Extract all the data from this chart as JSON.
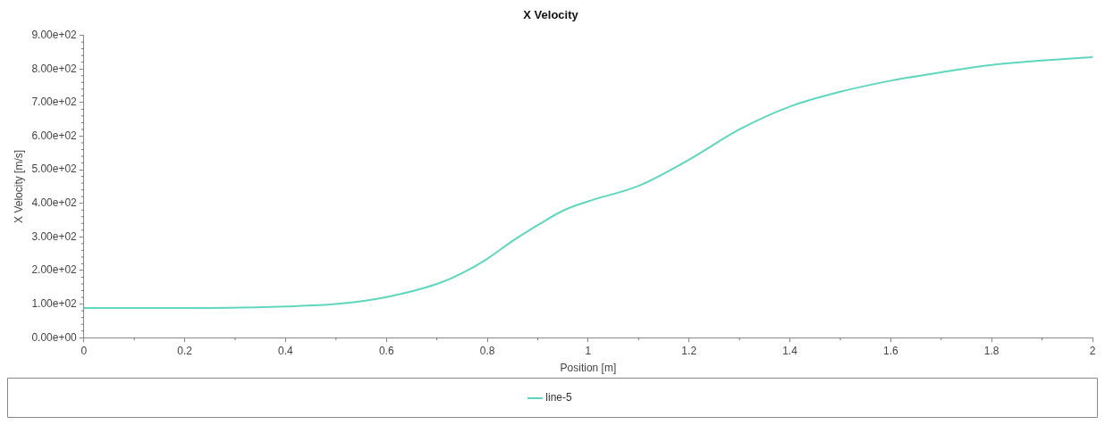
{
  "chart_data": {
    "type": "line",
    "title": "X Velocity",
    "xlabel": "Position [m]",
    "ylabel": "X Velocity [m/s]",
    "x": [
      0,
      0.2,
      0.4,
      0.5,
      0.6,
      0.7,
      0.75,
      0.8,
      0.85,
      0.9,
      0.95,
      1.0,
      1.1,
      1.2,
      1.3,
      1.4,
      1.5,
      1.6,
      1.7,
      1.8,
      1.9,
      2.0
    ],
    "series": [
      {
        "name": "line-5",
        "color": "#5fd6bd",
        "values": [
          88,
          88,
          93,
          100,
          121,
          160,
          192,
          235,
          288,
          335,
          378,
          406,
          452,
          530,
          620,
          688,
          732,
          765,
          790,
          812,
          825,
          835
        ]
      }
    ],
    "xlim": [
      0,
      2
    ],
    "xticks": [
      0,
      0.2,
      0.4,
      0.6,
      0.8,
      1,
      1.2,
      1.4,
      1.6,
      1.8,
      2
    ],
    "ylim": [
      0,
      900
    ],
    "yticks": [
      {
        "value": 0,
        "label": "0.00e+00"
      },
      {
        "value": 100,
        "label": "1.00e+02"
      },
      {
        "value": 200,
        "label": "2.00e+02"
      },
      {
        "value": 300,
        "label": "3.00e+02"
      },
      {
        "value": 400,
        "label": "4.00e+02"
      },
      {
        "value": 500,
        "label": "5.00e+02"
      },
      {
        "value": 600,
        "label": "6.00e+02"
      },
      {
        "value": 700,
        "label": "7.00e+02"
      },
      {
        "value": 800,
        "label": "8.00e+02"
      },
      {
        "value": 900,
        "label": "9.00e+02"
      }
    ],
    "grid": false,
    "legend": "bottom",
    "marker": "none",
    "line_style": "solid"
  }
}
